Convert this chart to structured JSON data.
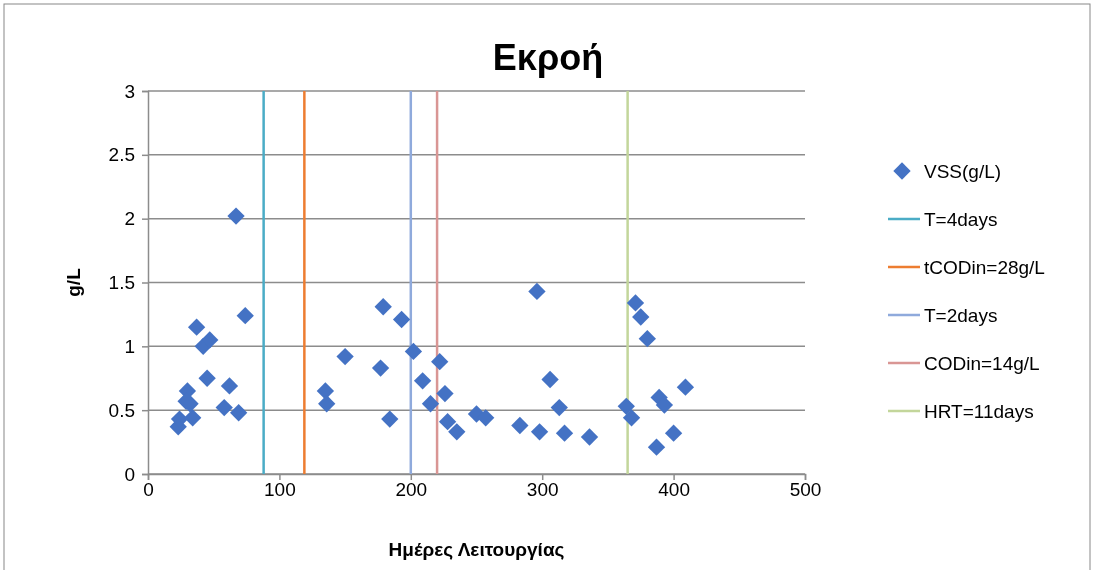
{
  "chart_data": {
    "type": "scatter",
    "title": "Εκροή",
    "xlabel": "Ημέρες Λειτουργίας",
    "ylabel": "g/L",
    "xlim": [
      0,
      500
    ],
    "xticks": [
      0,
      100,
      200,
      300,
      400,
      500
    ],
    "ylim": [
      0,
      3
    ],
    "yticks": [
      0,
      0.5,
      1,
      1.5,
      2,
      2.5,
      3
    ],
    "grid": "y",
    "legend": "right",
    "series": [
      {
        "name": "VSS(g/L)",
        "color": "#4472c4",
        "marker": "diamond",
        "x": [
          23,
          24,
          32,
          30,
          29,
          34,
          37,
          42,
          47,
          45,
          62,
          58,
          67,
          69,
          74,
          135,
          136,
          150,
          177,
          179,
          184,
          193,
          202,
          209,
          215,
          222,
          226,
          228,
          235,
          250,
          257,
          283,
          298,
          296,
          306,
          313,
          317,
          336,
          364,
          368,
          371,
          375,
          380,
          387,
          389,
          393,
          400,
          409
        ],
        "values": [
          0.37,
          0.43,
          0.55,
          0.65,
          0.57,
          0.44,
          1.15,
          1.0,
          1.05,
          0.75,
          0.69,
          0.52,
          2.02,
          0.48,
          1.24,
          0.65,
          0.55,
          0.92,
          0.83,
          1.31,
          0.43,
          1.21,
          0.96,
          0.73,
          0.55,
          0.88,
          0.63,
          0.41,
          0.33,
          0.47,
          0.44,
          0.38,
          0.33,
          1.43,
          0.74,
          0.52,
          0.32,
          0.29,
          0.53,
          0.44,
          1.34,
          1.23,
          1.06,
          0.21,
          0.6,
          0.54,
          0.32,
          0.68
        ]
      },
      {
        "type": "line",
        "name": "T=4days",
        "color": "#4bacc6",
        "x": [
          88,
          88
        ],
        "values": [
          0,
          3
        ]
      },
      {
        "type": "line",
        "name": "tCODin=28g/L",
        "color": "#ed7d31",
        "x": [
          119,
          119
        ],
        "values": [
          0,
          3
        ]
      },
      {
        "type": "line",
        "name": "T=2days",
        "color": "#8faadc",
        "x": [
          200,
          200
        ],
        "values": [
          0,
          3
        ]
      },
      {
        "type": "line",
        "name": "CODin=14g/L",
        "color": "#d99694",
        "x": [
          220,
          220
        ],
        "values": [
          0,
          3
        ]
      },
      {
        "type": "line",
        "name": "HRT=11days",
        "color": "#c3d69b",
        "x": [
          365,
          365
        ],
        "values": [
          0,
          3
        ]
      }
    ]
  }
}
